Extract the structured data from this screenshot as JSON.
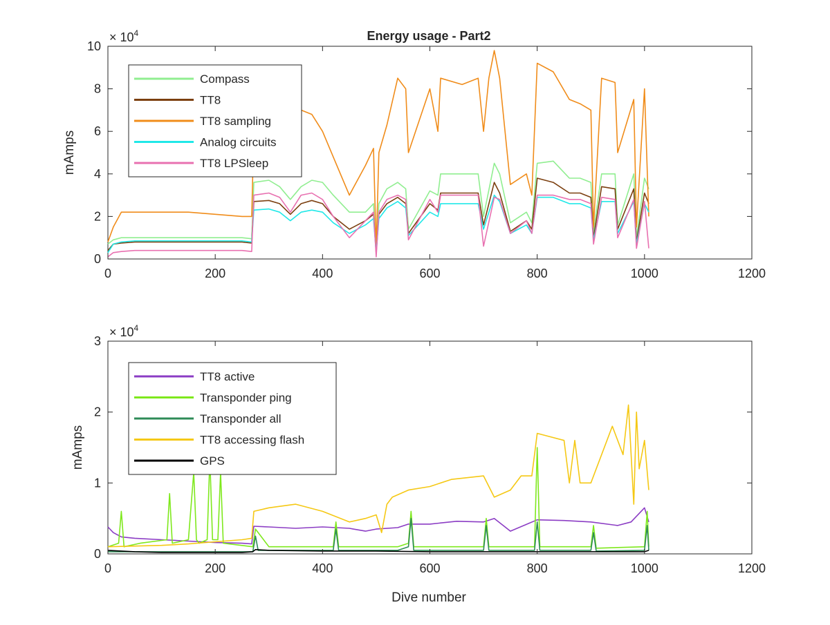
{
  "chart_data": [
    {
      "type": "line",
      "title": "Energy usage - Part2",
      "xlabel": "",
      "ylabel": "mAmps",
      "y_exponent_label": "× 10",
      "y_exponent": "4",
      "xlim": [
        0,
        1200
      ],
      "ylim": [
        0,
        100000
      ],
      "xticks": [
        0,
        200,
        400,
        600,
        800,
        1000,
        1200
      ],
      "xtick_labels": [
        "0",
        "200",
        "400",
        "600",
        "800",
        "1000",
        "1200"
      ],
      "yticks": [
        0,
        20000,
        40000,
        60000,
        80000,
        100000
      ],
      "ytick_labels": [
        "0",
        "2",
        "4",
        "6",
        "8",
        "10"
      ],
      "grid": false,
      "legend_position": "top-left",
      "series": [
        {
          "name": "Compass",
          "color": "#90ee90",
          "x": [
            0,
            10,
            25,
            50,
            100,
            150,
            200,
            250,
            268,
            272,
            300,
            320,
            340,
            360,
            380,
            400,
            420,
            450,
            480,
            495,
            500,
            505,
            520,
            540,
            555,
            560,
            600,
            615,
            620,
            660,
            690,
            700,
            720,
            730,
            750,
            780,
            790,
            800,
            830,
            860,
            880,
            900,
            905,
            920,
            945,
            950,
            980,
            985,
            1000,
            1008
          ],
          "y": [
            7000,
            9000,
            10000,
            10000,
            10000,
            10000,
            10000,
            10000,
            9500,
            36000,
            37000,
            34000,
            28000,
            34000,
            37000,
            36000,
            30000,
            22000,
            22000,
            26000,
            3000,
            26000,
            33000,
            36000,
            33000,
            14000,
            32000,
            30000,
            40000,
            40000,
            40000,
            20000,
            45000,
            40000,
            17000,
            22000,
            17000,
            45000,
            46000,
            38000,
            38000,
            36000,
            13000,
            40000,
            40000,
            16000,
            40000,
            10000,
            38000,
            33000
          ]
        },
        {
          "name": "TT8",
          "color": "#7b3f0f",
          "x": [
            0,
            10,
            25,
            50,
            100,
            150,
            200,
            250,
            268,
            272,
            300,
            320,
            340,
            360,
            380,
            400,
            420,
            450,
            480,
            495,
            500,
            505,
            520,
            540,
            555,
            560,
            600,
            615,
            620,
            660,
            690,
            700,
            720,
            730,
            750,
            780,
            790,
            800,
            830,
            860,
            880,
            900,
            905,
            920,
            945,
            950,
            980,
            985,
            1000,
            1008
          ],
          "y": [
            4000,
            7000,
            7500,
            8000,
            8000,
            8000,
            8000,
            8000,
            7500,
            27000,
            27500,
            26000,
            21000,
            26000,
            27500,
            26000,
            20000,
            14000,
            18000,
            21000,
            3000,
            21000,
            26000,
            29000,
            26000,
            12000,
            26000,
            23000,
            31000,
            31000,
            31000,
            16000,
            36000,
            31000,
            13000,
            18000,
            14000,
            38000,
            36000,
            31000,
            31000,
            29000,
            10000,
            34000,
            33000,
            14000,
            33000,
            8000,
            31000,
            26000
          ]
        },
        {
          "name": "TT8 sampling",
          "color": "#f08c1a",
          "x": [
            0,
            10,
            25,
            50,
            100,
            150,
            200,
            250,
            268,
            272,
            300,
            320,
            340,
            360,
            380,
            400,
            420,
            450,
            480,
            495,
            500,
            505,
            520,
            540,
            555,
            560,
            600,
            615,
            620,
            660,
            690,
            700,
            710,
            720,
            730,
            750,
            780,
            790,
            800,
            830,
            860,
            880,
            900,
            905,
            920,
            945,
            950,
            980,
            985,
            1000,
            1008
          ],
          "y": [
            8000,
            15000,
            22000,
            22000,
            22000,
            22000,
            21000,
            20000,
            20000,
            60000,
            60000,
            65000,
            62000,
            70000,
            68000,
            60000,
            48000,
            30000,
            44000,
            52000,
            5000,
            50000,
            63000,
            85000,
            80000,
            50000,
            80000,
            60000,
            85000,
            82000,
            85000,
            60000,
            85000,
            98000,
            85000,
            35000,
            40000,
            30000,
            92000,
            88000,
            75000,
            73000,
            70000,
            15000,
            85000,
            83000,
            50000,
            75000,
            15000,
            80000,
            20000
          ]
        },
        {
          "name": "Analog circuits",
          "color": "#20e8e8",
          "x": [
            0,
            10,
            25,
            50,
            100,
            150,
            200,
            250,
            268,
            272,
            300,
            320,
            340,
            360,
            380,
            400,
            420,
            450,
            480,
            495,
            500,
            505,
            520,
            540,
            555,
            560,
            600,
            615,
            620,
            660,
            690,
            700,
            720,
            730,
            750,
            780,
            790,
            800,
            830,
            860,
            880,
            900,
            905,
            920,
            945,
            950,
            980,
            985,
            1000,
            1008
          ],
          "y": [
            3000,
            7000,
            8000,
            8500,
            8500,
            8500,
            8500,
            8500,
            8000,
            23000,
            23500,
            22000,
            18000,
            22000,
            23000,
            22000,
            17000,
            12000,
            16000,
            19000,
            3000,
            19000,
            24000,
            27000,
            24000,
            11000,
            22000,
            20000,
            26000,
            26000,
            26000,
            14000,
            30000,
            27000,
            12000,
            16000,
            12000,
            29000,
            29000,
            26000,
            26000,
            24000,
            9000,
            27000,
            27000,
            12000,
            27000,
            7000,
            26000,
            22000
          ]
        },
        {
          "name": "TT8 LPSleep",
          "color": "#e870b0",
          "x": [
            0,
            10,
            25,
            50,
            100,
            150,
            200,
            250,
            268,
            272,
            300,
            320,
            340,
            360,
            380,
            400,
            420,
            450,
            480,
            495,
            500,
            505,
            520,
            540,
            555,
            560,
            600,
            615,
            620,
            660,
            690,
            700,
            720,
            730,
            750,
            780,
            790,
            800,
            830,
            860,
            880,
            900,
            905,
            920,
            945,
            950,
            980,
            985,
            1000,
            1008
          ],
          "y": [
            1000,
            3000,
            3500,
            4000,
            4000,
            4000,
            4000,
            4000,
            3500,
            30000,
            31000,
            29000,
            22000,
            30000,
            31000,
            28000,
            20000,
            10000,
            18000,
            22000,
            1000,
            22000,
            28000,
            30000,
            28000,
            9000,
            28000,
            22000,
            30000,
            30000,
            30000,
            6000,
            29000,
            28000,
            12000,
            18000,
            12000,
            30000,
            30000,
            28000,
            28000,
            26000,
            7000,
            29000,
            28000,
            10000,
            28000,
            5000,
            27000,
            5000
          ]
        }
      ]
    },
    {
      "type": "line",
      "title": "",
      "xlabel": "Dive number",
      "ylabel": "mAmps",
      "y_exponent_label": "× 10",
      "y_exponent": "4",
      "xlim": [
        0,
        1200
      ],
      "ylim": [
        0,
        30000
      ],
      "xticks": [
        0,
        200,
        400,
        600,
        800,
        1000,
        1200
      ],
      "xtick_labels": [
        "0",
        "200",
        "400",
        "600",
        "800",
        "1000",
        "1200"
      ],
      "yticks": [
        0,
        10000,
        20000,
        30000
      ],
      "ytick_labels": [
        "0",
        "1",
        "2",
        "3"
      ],
      "grid": false,
      "legend_position": "top-left",
      "series": [
        {
          "name": "TT8 active",
          "color": "#8b3cc4",
          "x": [
            0,
            10,
            25,
            50,
            100,
            150,
            200,
            250,
            268,
            272,
            300,
            350,
            400,
            450,
            480,
            500,
            540,
            560,
            600,
            650,
            700,
            720,
            750,
            800,
            850,
            900,
            950,
            975,
            1000,
            1008
          ],
          "y": [
            3800,
            3000,
            2400,
            2200,
            2000,
            1800,
            1600,
            1500,
            1400,
            3900,
            3800,
            3600,
            3800,
            3600,
            3200,
            3500,
            3700,
            4200,
            4200,
            4600,
            4500,
            5000,
            3200,
            4800,
            4700,
            4500,
            4000,
            4500,
            6500,
            4500
          ]
        },
        {
          "name": "Transponder ping",
          "color": "#7ee81c",
          "x": [
            0,
            20,
            25,
            30,
            60,
            110,
            115,
            120,
            150,
            160,
            165,
            170,
            185,
            190,
            195,
            205,
            210,
            215,
            270,
            275,
            300,
            420,
            425,
            430,
            540,
            560,
            565,
            570,
            700,
            705,
            710,
            795,
            800,
            805,
            900,
            905,
            910,
            1000,
            1005,
            1008
          ],
          "y": [
            1000,
            1500,
            6000,
            1000,
            1500,
            2000,
            8500,
            1500,
            2000,
            11500,
            2000,
            1500,
            2000,
            13500,
            2000,
            2000,
            11500,
            1500,
            1000,
            3500,
            1000,
            1000,
            4500,
            1000,
            1000,
            1500,
            6000,
            1000,
            1000,
            5000,
            1000,
            1000,
            15000,
            1000,
            1000,
            4000,
            800,
            1000,
            6000,
            1000
          ]
        },
        {
          "name": "Transponder all",
          "color": "#2e8b57",
          "x": [
            0,
            100,
            270,
            275,
            280,
            420,
            425,
            430,
            540,
            560,
            565,
            570,
            700,
            705,
            710,
            795,
            800,
            805,
            900,
            905,
            910,
            1000,
            1005,
            1008
          ],
          "y": [
            300,
            300,
            300,
            2500,
            500,
            500,
            3500,
            500,
            500,
            1000,
            5000,
            500,
            500,
            4000,
            500,
            500,
            4500,
            500,
            500,
            3000,
            400,
            500,
            4000,
            500
          ]
        },
        {
          "name": "TT8 accessing flash",
          "color": "#f5c814",
          "x": [
            0,
            50,
            100,
            150,
            200,
            250,
            268,
            272,
            300,
            350,
            400,
            450,
            480,
            500,
            510,
            520,
            530,
            560,
            600,
            640,
            700,
            720,
            750,
            770,
            790,
            800,
            850,
            860,
            870,
            880,
            900,
            940,
            960,
            970,
            980,
            985,
            990,
            1000,
            1008
          ],
          "y": [
            1000,
            1100,
            1200,
            1400,
            1700,
            2000,
            2200,
            6000,
            6500,
            7000,
            6000,
            4500,
            5000,
            5500,
            3000,
            7000,
            8000,
            9000,
            9500,
            10500,
            11000,
            8000,
            9000,
            11000,
            11000,
            17000,
            16000,
            10000,
            16000,
            10000,
            10000,
            18000,
            14000,
            21000,
            7000,
            20000,
            12000,
            16000,
            9000
          ]
        },
        {
          "name": "GPS",
          "color": "#000000",
          "x": [
            0,
            50,
            100,
            150,
            200,
            250,
            270,
            275,
            300,
            400,
            500,
            600,
            700,
            800,
            900,
            1000,
            1008
          ],
          "y": [
            500,
            300,
            200,
            200,
            200,
            200,
            300,
            600,
            500,
            400,
            400,
            300,
            300,
            300,
            300,
            300,
            500
          ]
        }
      ]
    }
  ]
}
